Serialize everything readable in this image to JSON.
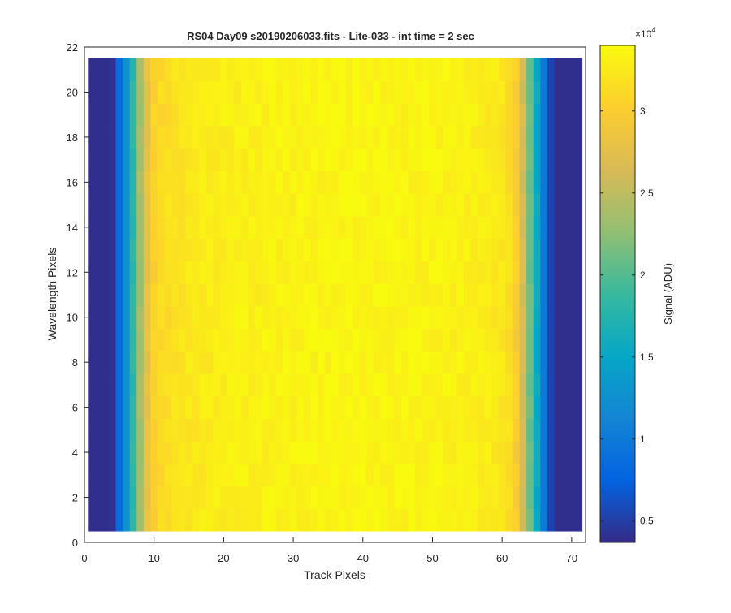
{
  "chart_data": {
    "type": "heatmap",
    "title": "RS04 Day09  s20190206033.fits - Lite-033 - int time = 2 sec",
    "xlabel": "Track Pixels",
    "ylabel": "Wavelength Pixels",
    "xlim": [
      0,
      72
    ],
    "ylim": [
      0,
      22
    ],
    "xticks": [
      0,
      10,
      20,
      30,
      40,
      50,
      60,
      70
    ],
    "yticks": [
      0,
      2,
      4,
      6,
      8,
      10,
      12,
      14,
      16,
      18,
      20,
      22
    ],
    "grid": false,
    "x_range": [
      1,
      71
    ],
    "y_range": [
      1,
      21
    ],
    "column_profile": [
      [
        1,
        4000
      ],
      [
        2,
        4000
      ],
      [
        3,
        4000
      ],
      [
        4,
        4200
      ],
      [
        5,
        8500
      ],
      [
        6,
        12500
      ],
      [
        7,
        18000
      ],
      [
        8,
        23500
      ],
      [
        9,
        28000
      ],
      [
        10,
        30500
      ],
      [
        11,
        31200
      ],
      [
        12,
        31600
      ],
      [
        13,
        31900
      ],
      [
        14,
        32100
      ],
      [
        15,
        32300
      ],
      [
        16,
        32500
      ],
      [
        17,
        32600
      ],
      [
        18,
        32700
      ],
      [
        19,
        32800
      ],
      [
        20,
        32900
      ],
      [
        21,
        33000
      ],
      [
        22,
        33000
      ],
      [
        23,
        33100
      ],
      [
        24,
        33100
      ],
      [
        25,
        33200
      ],
      [
        26,
        33200
      ],
      [
        27,
        33200
      ],
      [
        28,
        33300
      ],
      [
        29,
        33300
      ],
      [
        30,
        33300
      ],
      [
        31,
        33300
      ],
      [
        32,
        33400
      ],
      [
        33,
        33400
      ],
      [
        34,
        33400
      ],
      [
        35,
        33400
      ],
      [
        36,
        33400
      ],
      [
        37,
        33500
      ],
      [
        38,
        33500
      ],
      [
        39,
        33500
      ],
      [
        40,
        33500
      ],
      [
        41,
        33500
      ],
      [
        42,
        33500
      ],
      [
        43,
        33500
      ],
      [
        44,
        33500
      ],
      [
        45,
        33500
      ],
      [
        46,
        33400
      ],
      [
        47,
        33400
      ],
      [
        48,
        33400
      ],
      [
        49,
        33400
      ],
      [
        50,
        33300
      ],
      [
        51,
        33300
      ],
      [
        52,
        33300
      ],
      [
        53,
        33200
      ],
      [
        54,
        33200
      ],
      [
        55,
        33100
      ],
      [
        56,
        33000
      ],
      [
        57,
        32900
      ],
      [
        58,
        32700
      ],
      [
        59,
        32500
      ],
      [
        60,
        32200
      ],
      [
        61,
        31600
      ],
      [
        62,
        30000
      ],
      [
        63,
        26500
      ],
      [
        64,
        21000
      ],
      [
        65,
        15500
      ],
      [
        66,
        10000
      ],
      [
        67,
        5500
      ],
      [
        68,
        4000
      ],
      [
        69,
        4000
      ],
      [
        70,
        4000
      ],
      [
        71,
        4000
      ]
    ],
    "colorbar": {
      "label": "Signal (ADU)",
      "exponent_label": "×10",
      "exponent": "4",
      "range": [
        3700,
        34000
      ],
      "ticks": [
        0.5,
        1,
        1.5,
        2,
        2.5,
        3
      ],
      "tick_labels": [
        "0.5",
        "1",
        "1.5",
        "2",
        "2.5",
        "3"
      ],
      "tick_multiplier": 10000,
      "colormap": "parula",
      "colormap_stops": [
        "#352a87",
        "#0363e1",
        "#1485d4",
        "#06a7c6",
        "#38b99e",
        "#92bf73",
        "#d9ba56",
        "#fcce2e",
        "#f9fb0e"
      ]
    }
  }
}
